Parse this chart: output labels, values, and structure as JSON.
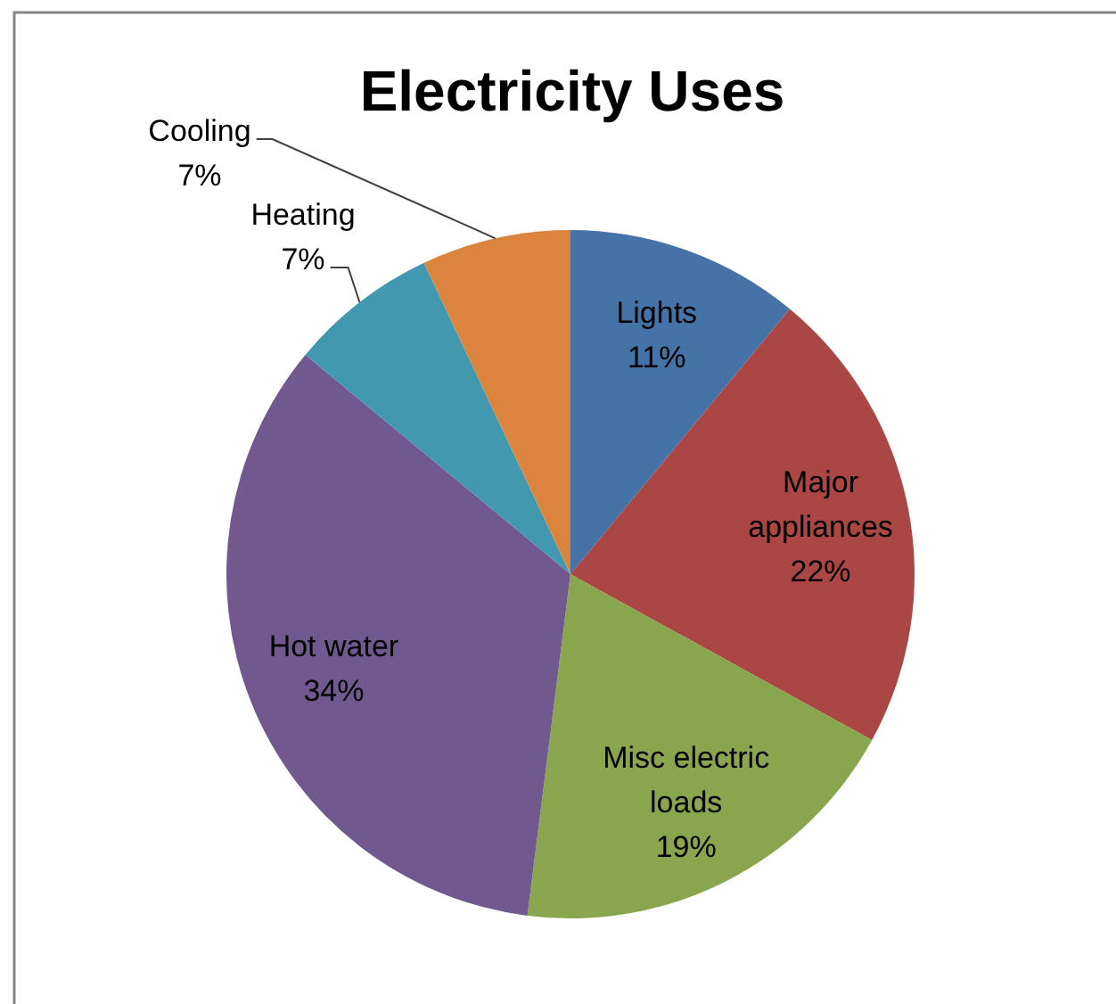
{
  "chart_data": {
    "type": "pie",
    "title": "Electricity Uses",
    "categories": [
      "Lights",
      "Major appliances",
      "Misc electric loads",
      "Hot water",
      "Heating",
      "Cooling"
    ],
    "values": [
      11,
      22,
      19,
      34,
      7,
      7
    ],
    "value_labels": [
      "11%",
      "22%",
      "19%",
      "34%",
      "7%",
      "7%"
    ],
    "colors": [
      "#4572a7",
      "#aa4643",
      "#89a54e",
      "#71588f",
      "#4198af",
      "#db843d"
    ]
  }
}
